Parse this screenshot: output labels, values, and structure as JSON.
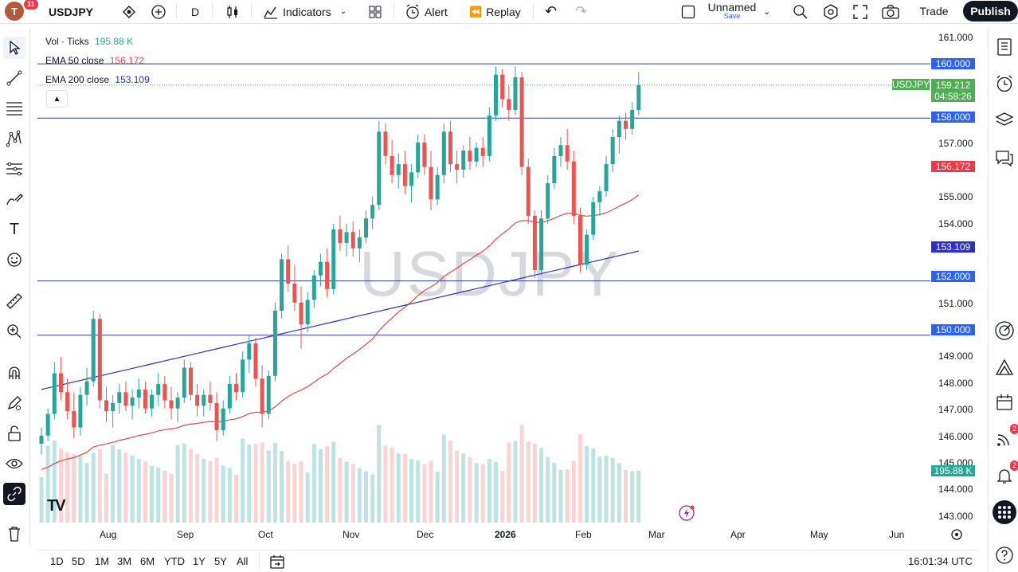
{
  "topbar": {
    "avatar_letter": "T",
    "avatar_badge": "11",
    "symbol": "USDJPY",
    "interval": "D",
    "indicators_label": "Indicators",
    "alert_label": "Alert",
    "replay_label": "Replay",
    "layout_name": "Unnamed",
    "layout_save": "Save",
    "trade_label": "Trade",
    "publish_label": "Publish"
  },
  "legend": {
    "vol_label": "Vol · Ticks",
    "vol_value": "195.88 K",
    "ema50_label": "EMA 50 close",
    "ema50_value": "156.172",
    "ema200_label": "EMA 200 close",
    "ema200_value": "153.109"
  },
  "colors": {
    "up": "#26a69a",
    "down": "#ef5350",
    "ema50": "#e84545",
    "ema200": "#2b2fc9",
    "hline": "#2c3e9e",
    "tag_blue": "#2962ff",
    "tag_green": "#4caf50",
    "tag_red": "#f23645",
    "tag_teal": "#22ab94"
  },
  "watermark": "USDJPY",
  "price_axis": {
    "ticks": [
      "161.000",
      "157.000",
      "155.000",
      "154.000",
      "151.000",
      "149.000",
      "148.000",
      "147.000",
      "146.000",
      "145.000",
      "144.000",
      "143.000"
    ],
    "tags": {
      "l160": "160.000",
      "last_symbol": "USDJPY",
      "last_price": "159.212",
      "countdown": "04:58:26",
      "l158": "158.000",
      "ema50": "156.172",
      "ema200": "153.109",
      "l152": "152.000",
      "l150": "150.000",
      "volume": "195.88 K"
    }
  },
  "time_axis": [
    "Aug",
    "Sep",
    "Oct",
    "Nov",
    "Dec",
    "2026",
    "Feb",
    "Mar",
    "Apr",
    "May",
    "Jun"
  ],
  "bottom": {
    "ranges": [
      "1D",
      "5D",
      "1M",
      "3M",
      "6M",
      "YTD",
      "1Y",
      "5Y",
      "All"
    ],
    "clock": "16:01:34 UTC"
  },
  "right_badges": {
    "ideas": "2",
    "alerts": "2"
  },
  "chart_data": {
    "type": "candlestick",
    "symbol": "USDJPY",
    "interval": "D",
    "y_range": [
      142.8,
      161.0
    ],
    "horizontal_levels": [
      160.0,
      158.0,
      152.0,
      150.0
    ],
    "last_price": 159.212,
    "ema50_last": 156.172,
    "ema200_last": 153.109,
    "volume_last": "195.88 K",
    "candles_approx": [
      [
        146.0,
        146.6,
        145.6,
        146.3
      ],
      [
        146.3,
        147.3,
        146.1,
        147.1
      ],
      [
        147.1,
        149.0,
        146.9,
        148.6
      ],
      [
        148.6,
        149.2,
        147.6,
        147.9
      ],
      [
        147.9,
        148.4,
        146.9,
        147.2
      ],
      [
        147.2,
        147.9,
        146.2,
        146.6
      ],
      [
        146.6,
        148.1,
        146.3,
        147.8
      ],
      [
        147.8,
        148.8,
        147.4,
        148.3
      ],
      [
        148.3,
        150.9,
        148.1,
        150.6
      ],
      [
        150.6,
        150.8,
        147.3,
        147.6
      ],
      [
        147.6,
        148.1,
        146.8,
        147.2
      ],
      [
        147.2,
        147.8,
        146.6,
        147.5
      ],
      [
        147.5,
        148.2,
        147.1,
        147.9
      ],
      [
        147.9,
        148.3,
        147.2,
        147.4
      ],
      [
        147.4,
        148.0,
        146.9,
        147.7
      ],
      [
        147.7,
        148.4,
        147.3,
        148.0
      ],
      [
        148.0,
        148.3,
        147.1,
        147.3
      ],
      [
        147.3,
        148.0,
        147.0,
        147.8
      ],
      [
        147.8,
        148.6,
        147.4,
        148.2
      ],
      [
        148.2,
        148.5,
        147.3,
        147.6
      ],
      [
        147.6,
        148.1,
        146.9,
        147.3
      ],
      [
        147.3,
        147.9,
        146.8,
        147.7
      ],
      [
        147.7,
        149.1,
        147.5,
        148.8
      ],
      [
        148.8,
        149.0,
        147.6,
        147.8
      ],
      [
        147.8,
        148.2,
        147.0,
        147.4
      ],
      [
        147.4,
        148.0,
        147.0,
        147.8
      ],
      [
        147.8,
        148.3,
        147.2,
        147.5
      ],
      [
        147.5,
        147.9,
        146.1,
        146.5
      ],
      [
        146.5,
        147.6,
        146.3,
        147.3
      ],
      [
        147.3,
        148.5,
        147.1,
        148.2
      ],
      [
        148.2,
        148.6,
        147.6,
        147.9
      ],
      [
        147.9,
        149.4,
        147.7,
        149.1
      ],
      [
        149.1,
        150.0,
        148.6,
        149.7
      ],
      [
        149.7,
        149.9,
        148.1,
        148.4
      ],
      [
        148.4,
        148.9,
        146.6,
        147.1
      ],
      [
        147.1,
        148.7,
        146.9,
        148.5
      ],
      [
        148.5,
        151.2,
        148.3,
        150.9
      ],
      [
        150.9,
        153.0,
        150.6,
        152.8
      ],
      [
        152.8,
        153.3,
        151.6,
        151.9
      ],
      [
        151.9,
        152.6,
        150.9,
        151.2
      ],
      [
        151.2,
        151.8,
        149.5,
        150.4
      ],
      [
        150.4,
        151.6,
        150.1,
        151.3
      ],
      [
        151.3,
        152.4,
        151.0,
        152.2
      ],
      [
        152.2,
        153.0,
        151.8,
        152.7
      ],
      [
        152.7,
        153.2,
        151.4,
        151.7
      ],
      [
        151.7,
        154.1,
        151.5,
        153.9
      ],
      [
        153.9,
        154.4,
        153.1,
        153.4
      ],
      [
        153.4,
        154.1,
        152.9,
        153.8
      ],
      [
        153.8,
        154.2,
        152.9,
        153.2
      ],
      [
        153.2,
        153.9,
        152.7,
        153.6
      ],
      [
        153.6,
        154.6,
        153.4,
        154.3
      ],
      [
        154.3,
        155.1,
        153.9,
        154.8
      ],
      [
        154.8,
        157.9,
        154.6,
        157.5
      ],
      [
        157.5,
        157.8,
        156.3,
        156.6
      ],
      [
        156.6,
        157.2,
        155.6,
        155.9
      ],
      [
        155.9,
        156.7,
        155.4,
        156.3
      ],
      [
        156.3,
        156.8,
        155.2,
        155.5
      ],
      [
        155.5,
        156.3,
        154.9,
        156.0
      ],
      [
        156.0,
        157.4,
        155.8,
        157.1
      ],
      [
        157.1,
        157.4,
        155.9,
        156.2
      ],
      [
        156.2,
        156.8,
        154.6,
        155.0
      ],
      [
        155.0,
        156.2,
        154.8,
        155.9
      ],
      [
        155.9,
        157.8,
        155.6,
        157.5
      ],
      [
        157.5,
        157.9,
        156.0,
        156.3
      ],
      [
        156.3,
        156.8,
        155.6,
        156.1
      ],
      [
        156.1,
        157.0,
        155.8,
        156.8
      ],
      [
        156.8,
        157.3,
        156.1,
        156.4
      ],
      [
        156.4,
        157.1,
        156.2,
        156.9
      ],
      [
        156.9,
        157.3,
        156.2,
        156.6
      ],
      [
        156.6,
        158.4,
        156.4,
        158.1
      ],
      [
        158.1,
        159.9,
        157.9,
        159.6
      ],
      [
        159.6,
        159.8,
        158.4,
        158.7
      ],
      [
        158.7,
        159.2,
        157.9,
        158.3
      ],
      [
        158.3,
        159.9,
        158.1,
        159.5
      ],
      [
        159.5,
        159.7,
        155.9,
        156.2
      ],
      [
        156.2,
        156.5,
        154.1,
        154.4
      ],
      [
        154.4,
        154.6,
        152.1,
        152.4
      ],
      [
        152.4,
        154.6,
        152.2,
        154.3
      ],
      [
        154.3,
        155.9,
        154.1,
        155.6
      ],
      [
        155.6,
        156.9,
        155.4,
        156.6
      ],
      [
        156.6,
        157.3,
        156.2,
        157.0
      ],
      [
        157.0,
        157.6,
        156.1,
        156.4
      ],
      [
        156.4,
        156.8,
        154.1,
        154.4
      ],
      [
        154.4,
        154.7,
        152.3,
        152.6
      ],
      [
        152.6,
        153.9,
        152.4,
        153.7
      ],
      [
        153.7,
        155.1,
        153.5,
        154.9
      ],
      [
        154.9,
        155.5,
        154.4,
        155.3
      ],
      [
        155.3,
        156.6,
        155.1,
        156.3
      ],
      [
        156.3,
        157.6,
        156.0,
        157.3
      ],
      [
        157.3,
        158.1,
        156.7,
        157.9
      ],
      [
        157.9,
        158.2,
        157.2,
        157.6
      ],
      [
        157.6,
        158.6,
        157.4,
        158.3
      ],
      [
        158.3,
        159.7,
        158.1,
        159.212
      ]
    ]
  }
}
